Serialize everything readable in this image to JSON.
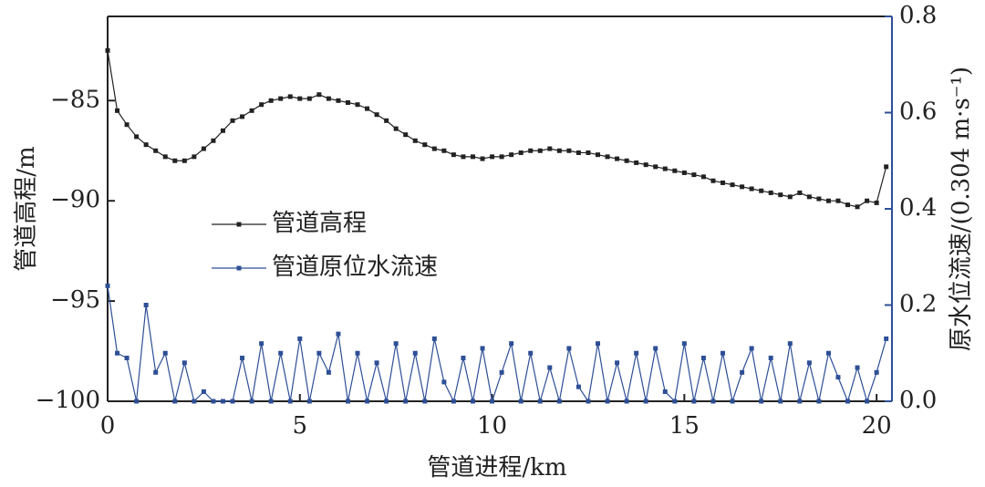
{
  "chart_data": {
    "type": "line",
    "xlabel": "管道进程/km",
    "ylabel": "管道高程/m",
    "y2label": "原水位流速/(0.304 m·s⁻¹)",
    "x": [
      0,
      0.25,
      0.5,
      0.75,
      1,
      1.25,
      1.5,
      1.75,
      2,
      2.25,
      2.5,
      2.75,
      3,
      3.25,
      3.5,
      3.75,
      4,
      4.25,
      4.5,
      4.75,
      5,
      5.25,
      5.5,
      5.75,
      6,
      6.25,
      6.5,
      6.75,
      7,
      7.25,
      7.5,
      7.75,
      8,
      8.25,
      8.5,
      8.75,
      9,
      9.25,
      9.5,
      9.75,
      10,
      10.25,
      10.5,
      10.75,
      11,
      11.25,
      11.5,
      11.75,
      12,
      12.25,
      12.5,
      12.75,
      13,
      13.25,
      13.5,
      13.75,
      14,
      14.25,
      14.5,
      14.75,
      15,
      15.25,
      15.5,
      15.75,
      16,
      16.25,
      16.5,
      16.75,
      17,
      17.25,
      17.5,
      17.75,
      18,
      18.25,
      18.5,
      18.75,
      19,
      19.25,
      19.5,
      19.75,
      20,
      20.25
    ],
    "series": [
      {
        "name": "管道高程",
        "color": "#222222",
        "axis": "y",
        "values": [
          -82.5,
          -85.5,
          -86.2,
          -86.8,
          -87.2,
          -87.5,
          -87.8,
          -88.0,
          -88.0,
          -87.8,
          -87.4,
          -87.0,
          -86.5,
          -86.0,
          -85.8,
          -85.5,
          -85.2,
          -85.0,
          -84.9,
          -84.8,
          -84.9,
          -84.9,
          -84.7,
          -84.9,
          -85.0,
          -85.1,
          -85.2,
          -85.4,
          -85.7,
          -86.0,
          -86.4,
          -86.7,
          -87.0,
          -87.2,
          -87.4,
          -87.5,
          -87.7,
          -87.8,
          -87.8,
          -87.9,
          -87.8,
          -87.8,
          -87.7,
          -87.6,
          -87.5,
          -87.5,
          -87.4,
          -87.5,
          -87.5,
          -87.6,
          -87.6,
          -87.7,
          -87.8,
          -87.9,
          -88.0,
          -88.1,
          -88.2,
          -88.3,
          -88.4,
          -88.5,
          -88.6,
          -88.7,
          -88.8,
          -89.0,
          -89.1,
          -89.2,
          -89.3,
          -89.4,
          -89.5,
          -89.6,
          -89.7,
          -89.8,
          -89.6,
          -89.8,
          -89.9,
          -90.0,
          -90.0,
          -90.2,
          -90.3,
          -90.0,
          -90.1,
          -88.3
        ]
      },
      {
        "name": "管道原位水流速",
        "color": "#2e4f96",
        "axis": "y2",
        "values": [
          0.24,
          0.1,
          0.09,
          0.0,
          0.2,
          0.06,
          0.1,
          0.0,
          0.08,
          0.0,
          0.02,
          0.0,
          0.0,
          0.0,
          0.09,
          0.0,
          0.12,
          0.0,
          0.1,
          0.0,
          0.13,
          0.0,
          0.1,
          0.06,
          0.14,
          0.0,
          0.1,
          0.0,
          0.08,
          0.0,
          0.12,
          0.0,
          0.1,
          0.0,
          0.13,
          0.04,
          0.0,
          0.09,
          0.0,
          0.11,
          0.0,
          0.06,
          0.12,
          0.0,
          0.1,
          0.0,
          0.07,
          0.0,
          0.11,
          0.03,
          0.0,
          0.12,
          0.0,
          0.08,
          0.0,
          0.1,
          0.0,
          0.11,
          0.02,
          0.0,
          0.12,
          0.0,
          0.09,
          0.0,
          0.1,
          0.0,
          0.06,
          0.11,
          0.0,
          0.09,
          0.0,
          0.12,
          0.0,
          0.08,
          0.0,
          0.1,
          0.05,
          0.0,
          0.07,
          0.0,
          0.06,
          0.13
        ]
      }
    ],
    "xlim": [
      0,
      20.4
    ],
    "xticks": [
      0,
      5,
      10,
      15,
      20
    ],
    "ylim": [
      -100,
      -80.8
    ],
    "yticks": [
      {
        "value": -100,
        "label": "−100"
      },
      {
        "value": -95,
        "label": "−95"
      },
      {
        "value": -90,
        "label": "−90"
      },
      {
        "value": -85,
        "label": "−85"
      }
    ],
    "y2lim": [
      0,
      0.8
    ],
    "y2ticks": [
      {
        "value": 0,
        "label": "0.0"
      },
      0.2,
      0.4,
      0.6,
      0.8
    ],
    "y2color": "#2e4f96",
    "legend": "center left"
  }
}
